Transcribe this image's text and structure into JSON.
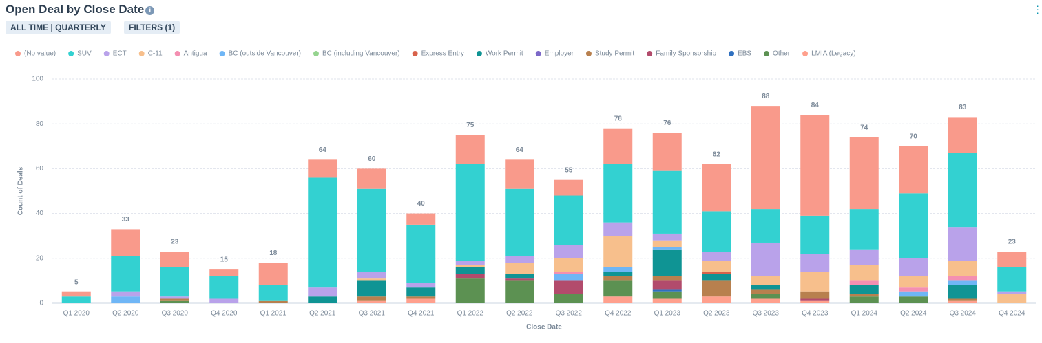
{
  "header": {
    "title": "Open Deal by Close Date",
    "buttons": [
      "ALL TIME | QUARTERLY",
      "FILTERS (1)"
    ]
  },
  "chart_data": {
    "type": "stacked_bar",
    "x_label": "Close Date",
    "y_label": "Count of Deals",
    "categories": [
      "Q1 2020",
      "Q2 2020",
      "Q3 2020",
      "Q4 2020",
      "Q1 2021",
      "Q2 2021",
      "Q3 2021",
      "Q4 2021",
      "Q1 2022",
      "Q2 2022",
      "Q3 2022",
      "Q4 2022",
      "Q1 2023",
      "Q2 2023",
      "Q3 2023",
      "Q4 2023",
      "Q1 2024",
      "Q2 2024",
      "Q3 2024",
      "Q4 2024"
    ],
    "totals": [
      5,
      33,
      23,
      15,
      18,
      64,
      60,
      40,
      75,
      64,
      55,
      78,
      76,
      62,
      88,
      84,
      74,
      70,
      83,
      23
    ],
    "ylim": [
      0,
      100
    ],
    "yticks": [
      0,
      20,
      40,
      60,
      80,
      100
    ],
    "grid": true,
    "legend": "top",
    "series": [
      {
        "name": "(No value)",
        "color": "#f99a8b",
        "values": [
          2,
          12,
          7,
          3,
          10,
          8,
          9,
          5,
          13,
          13,
          7,
          16,
          17,
          21,
          46,
          45,
          32,
          21,
          16,
          7
        ]
      },
      {
        "name": "SUV",
        "color": "#33d1d1",
        "values": [
          3,
          16,
          13,
          10,
          7,
          49,
          37,
          26,
          43,
          30,
          22,
          26,
          28,
          18,
          15,
          17,
          18,
          29,
          33,
          11
        ]
      },
      {
        "name": "ECT",
        "color": "#b9a2ea",
        "values": [
          0,
          2,
          1,
          2,
          0,
          4,
          3,
          2,
          2,
          3,
          6,
          6,
          3,
          4,
          15,
          8,
          7,
          8,
          15,
          1
        ]
      },
      {
        "name": "C-11",
        "color": "#f7bf8c",
        "values": [
          0,
          0,
          0,
          0,
          0,
          0,
          1,
          0,
          1,
          5,
          6,
          14,
          3,
          5,
          4,
          9,
          7,
          5,
          7,
          4
        ]
      },
      {
        "name": "Antigua",
        "color": "#f48fb1",
        "values": [
          0,
          0,
          0,
          0,
          0,
          0,
          0,
          0,
          0,
          0,
          1,
          0,
          0,
          0,
          0,
          0,
          2,
          2,
          2,
          0
        ]
      },
      {
        "name": "BC (outside Vancouver)",
        "color": "#6fb6f6",
        "values": [
          0,
          3,
          0,
          0,
          0,
          0,
          0,
          0,
          0,
          0,
          3,
          2,
          1,
          0,
          0,
          0,
          0,
          2,
          2,
          0
        ]
      },
      {
        "name": "BC (including Vancouver)",
        "color": "#95d48f",
        "values": [
          0,
          0,
          0,
          0,
          0,
          0,
          0,
          0,
          0,
          0,
          0,
          0,
          0,
          0,
          0,
          0,
          0,
          0,
          0,
          0
        ]
      },
      {
        "name": "Express Entry",
        "color": "#d8624b",
        "values": [
          0,
          0,
          0,
          0,
          0,
          0,
          0,
          0,
          0,
          0,
          0,
          0,
          0,
          1,
          0,
          0,
          0,
          0,
          0,
          0
        ]
      },
      {
        "name": "Work Permit",
        "color": "#0f9494",
        "values": [
          0,
          0,
          0,
          0,
          0,
          3,
          7,
          4,
          3,
          2,
          0,
          2,
          12,
          3,
          2,
          0,
          4,
          0,
          6,
          0
        ]
      },
      {
        "name": "Employer",
        "color": "#7c68c8",
        "values": [
          0,
          0,
          0,
          0,
          0,
          0,
          0,
          0,
          0,
          0,
          0,
          0,
          0,
          0,
          0,
          0,
          0,
          0,
          0,
          0
        ]
      },
      {
        "name": "Study Permit",
        "color": "#b8804e",
        "values": [
          0,
          0,
          1,
          0,
          1,
          0,
          2,
          1,
          0,
          0,
          0,
          2,
          2,
          7,
          2,
          3,
          1,
          0,
          1,
          0
        ]
      },
      {
        "name": "Family Sponsorship",
        "color": "#b24b6c",
        "values": [
          0,
          0,
          0,
          0,
          0,
          0,
          0,
          0,
          2,
          1,
          6,
          0,
          4,
          0,
          0,
          1,
          0,
          0,
          0,
          0
        ]
      },
      {
        "name": "EBS",
        "color": "#2f70c0",
        "values": [
          0,
          0,
          0,
          0,
          0,
          0,
          0,
          0,
          0,
          0,
          0,
          0,
          1,
          0,
          0,
          0,
          0,
          0,
          0,
          0
        ]
      },
      {
        "name": "Other",
        "color": "#5c9152",
        "values": [
          0,
          0,
          1,
          0,
          0,
          0,
          0,
          0,
          11,
          10,
          4,
          7,
          3,
          0,
          2,
          0,
          3,
          3,
          0,
          0
        ]
      },
      {
        "name": "LMIA (Legacy)",
        "color": "#ffa08d",
        "values": [
          0,
          0,
          0,
          0,
          0,
          0,
          1,
          2,
          0,
          0,
          0,
          3,
          2,
          3,
          2,
          1,
          0,
          0,
          1,
          0
        ]
      }
    ]
  }
}
